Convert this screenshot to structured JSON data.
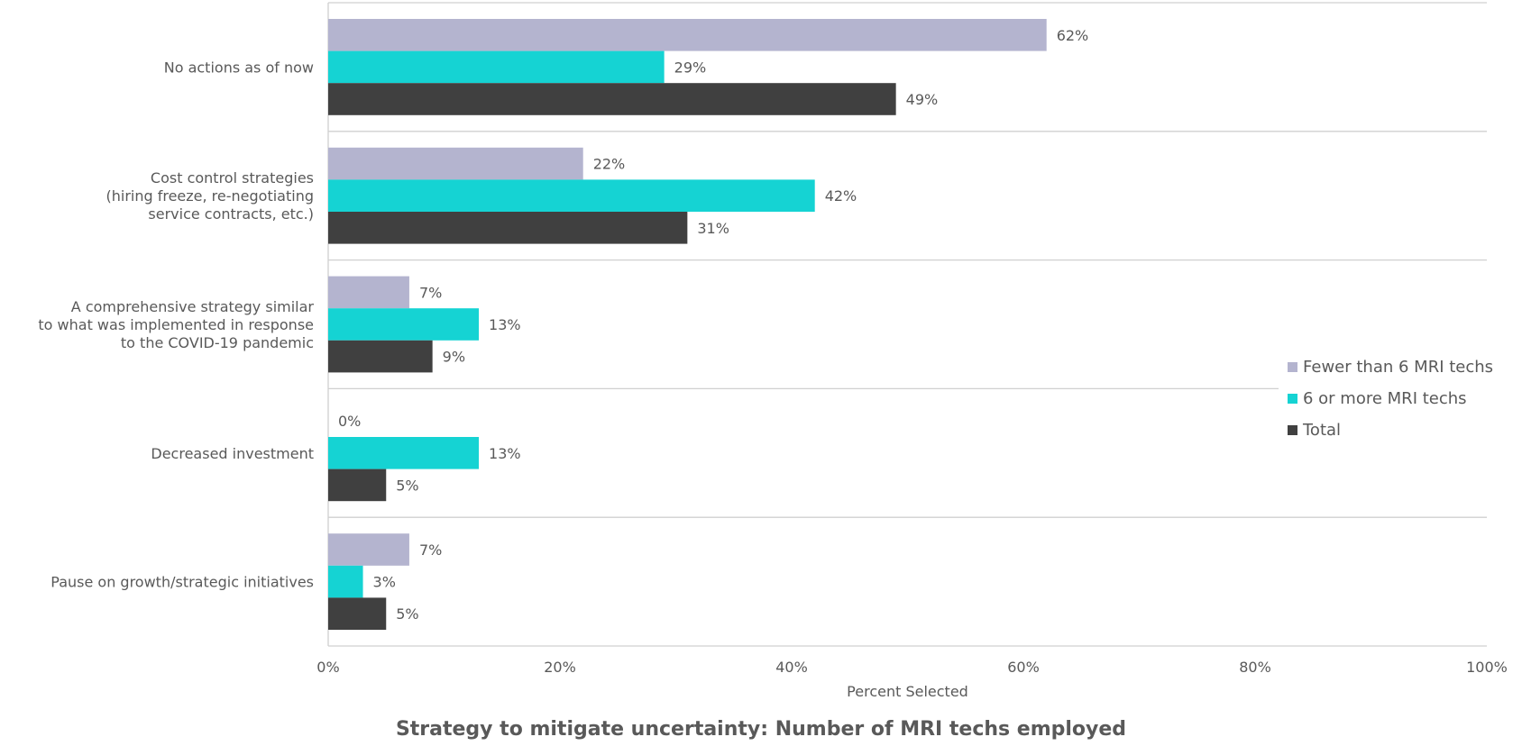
{
  "chart_data": {
    "type": "bar",
    "orientation": "horizontal",
    "title": "Strategy to mitigate uncertainty: Number of MRI techs employed",
    "xlabel": "Percent Selected",
    "ylabel": "",
    "xlim": [
      0,
      100
    ],
    "x_ticks": [
      "0%",
      "20%",
      "40%",
      "60%",
      "80%",
      "100%"
    ],
    "categories": [
      [
        "No actions as of now"
      ],
      [
        "Cost control strategies",
        "(hiring freeze, re-negotiating",
        "service contracts, etc.)"
      ],
      [
        "A comprehensive strategy similar",
        "to what was implemented in response",
        "to the COVID-19 pandemic"
      ],
      [
        "Decreased investment"
      ],
      [
        "Pause on growth/strategic initiatives"
      ]
    ],
    "series": [
      {
        "name": "Fewer than 6 MRI techs",
        "color": "#b4b4cf",
        "values": [
          62,
          22,
          7,
          0,
          7
        ],
        "labels": [
          "62%",
          "22%",
          "7%",
          "0%",
          "7%"
        ]
      },
      {
        "name": "6 or more MRI techs",
        "color": "#15d3d3",
        "values": [
          29,
          42,
          13,
          13,
          3
        ],
        "labels": [
          "29%",
          "42%",
          "13%",
          "13%",
          "3%"
        ]
      },
      {
        "name": "Total",
        "color": "#404040",
        "values": [
          49,
          31,
          9,
          5,
          5
        ],
        "labels": [
          "49%",
          "31%",
          "9%",
          "5%",
          "5%"
        ]
      }
    ],
    "legend_position": "right",
    "grid": "category separators"
  }
}
